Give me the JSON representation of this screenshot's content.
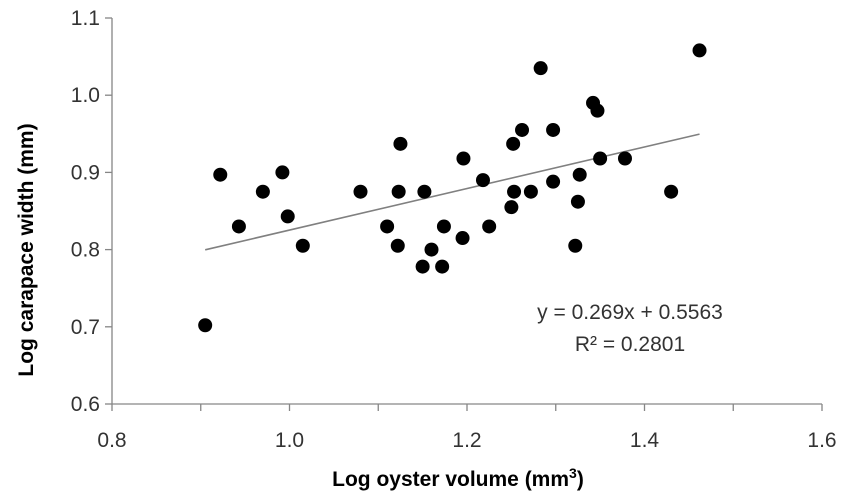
{
  "chart_data": {
    "type": "scatter",
    "title": "",
    "xlabel": "Log oyster volume (mm",
    "xlabel_sup": "3",
    "xlabel_end": ")",
    "ylabel": "Log carapace width (mm)",
    "xlim": [
      0.8,
      1.6
    ],
    "ylim": [
      0.6,
      1.1
    ],
    "x_ticks": [
      "0.8",
      "1.0",
      "1.2",
      "1.4",
      "1.6"
    ],
    "y_ticks": [
      "0.6",
      "0.7",
      "0.8",
      "0.9",
      "1.0",
      "1.1"
    ],
    "grid": false,
    "legend": "none",
    "series": [
      {
        "x": [
          0.905,
          0.922,
          0.943,
          0.97,
          0.992,
          0.998,
          1.015,
          1.08,
          1.11,
          1.122,
          1.123,
          1.125,
          1.15,
          1.152,
          1.16,
          1.172,
          1.174,
          1.195,
          1.196,
          1.218,
          1.225,
          1.25,
          1.252,
          1.253,
          1.262,
          1.272,
          1.283,
          1.297,
          1.297,
          1.322,
          1.325,
          1.327,
          1.342,
          1.347,
          1.35,
          1.378,
          1.43,
          1.462
        ],
        "y": [
          0.702,
          0.897,
          0.83,
          0.875,
          0.9,
          0.843,
          0.805,
          0.875,
          0.83,
          0.805,
          0.875,
          0.937,
          0.778,
          0.875,
          0.8,
          0.778,
          0.83,
          0.815,
          0.918,
          0.89,
          0.83,
          0.855,
          0.937,
          0.875,
          0.955,
          0.875,
          1.035,
          0.888,
          0.955,
          0.805,
          0.862,
          0.897,
          0.99,
          0.98,
          0.918,
          0.918,
          0.875,
          1.058
        ]
      }
    ],
    "trendline": {
      "slope": 0.269,
      "intercept": 0.5563,
      "x_range": [
        0.905,
        1.462
      ]
    },
    "annotations": [
      "y = 0.269x + 0.5563",
      "R² = 0.2801"
    ],
    "colors": {
      "points": "#000000",
      "trendline": "#808080",
      "axis": "#868686"
    }
  }
}
